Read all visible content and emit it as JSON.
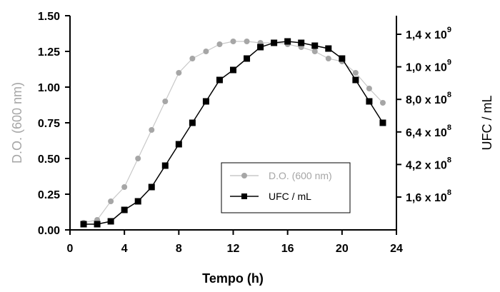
{
  "chart_data": {
    "type": "line",
    "title": "",
    "xlabel": "Tempo (h)",
    "ylabel_left": "D.O. (600 nm)",
    "ylabel_right": "UFC / mL",
    "xlim": [
      0,
      24
    ],
    "ylim_left": [
      0,
      1.5
    ],
    "x_ticks": [
      "0",
      "4",
      "8",
      "12",
      "16",
      "20",
      "24"
    ],
    "y_left_ticks": [
      "0.00",
      "0.25",
      "0.50",
      "0.75",
      "1.00",
      "1.25",
      "1.50"
    ],
    "y_right_ticks": [
      {
        "mantissa": "1,6 x 10",
        "exp": "8"
      },
      {
        "mantissa": "4,2 x 10",
        "exp": "8"
      },
      {
        "mantissa": "6,4 x 10",
        "exp": "8"
      },
      {
        "mantissa": "8,0 x 10",
        "exp": "8"
      },
      {
        "mantissa": "1,0 x 10",
        "exp": "9"
      },
      {
        "mantissa": "1,4 x 10",
        "exp": "9"
      }
    ],
    "legend_position": "center-right",
    "grid": false,
    "series": [
      {
        "name": "D.O. (600 nm)",
        "axis": "left",
        "color": "#a6a6a6",
        "marker": "circle",
        "x": [
          1,
          2,
          3,
          4,
          5,
          6,
          7,
          8,
          9,
          10,
          11,
          12,
          13,
          14,
          15,
          16,
          17,
          18,
          19,
          20,
          21,
          22,
          23
        ],
        "y": [
          0.05,
          0.07,
          0.2,
          0.3,
          0.5,
          0.7,
          0.9,
          1.1,
          1.2,
          1.25,
          1.3,
          1.32,
          1.32,
          1.31,
          1.31,
          1.3,
          1.28,
          1.25,
          1.2,
          1.18,
          1.1,
          0.99,
          0.89
        ]
      },
      {
        "name": "UFC / mL",
        "axis": "right",
        "color": "#000000",
        "marker": "square",
        "x": [
          1,
          2,
          3,
          4,
          5,
          6,
          7,
          8,
          9,
          10,
          11,
          12,
          13,
          14,
          15,
          16,
          17,
          18,
          19,
          20,
          21,
          22,
          23
        ],
        "y_display_on_left_scale": [
          0.04,
          0.04,
          0.06,
          0.14,
          0.2,
          0.3,
          0.45,
          0.6,
          0.75,
          0.9,
          1.05,
          1.12,
          1.2,
          1.28,
          1.31,
          1.32,
          1.31,
          1.29,
          1.27,
          1.2,
          1.05,
          0.9,
          0.75
        ]
      }
    ]
  }
}
